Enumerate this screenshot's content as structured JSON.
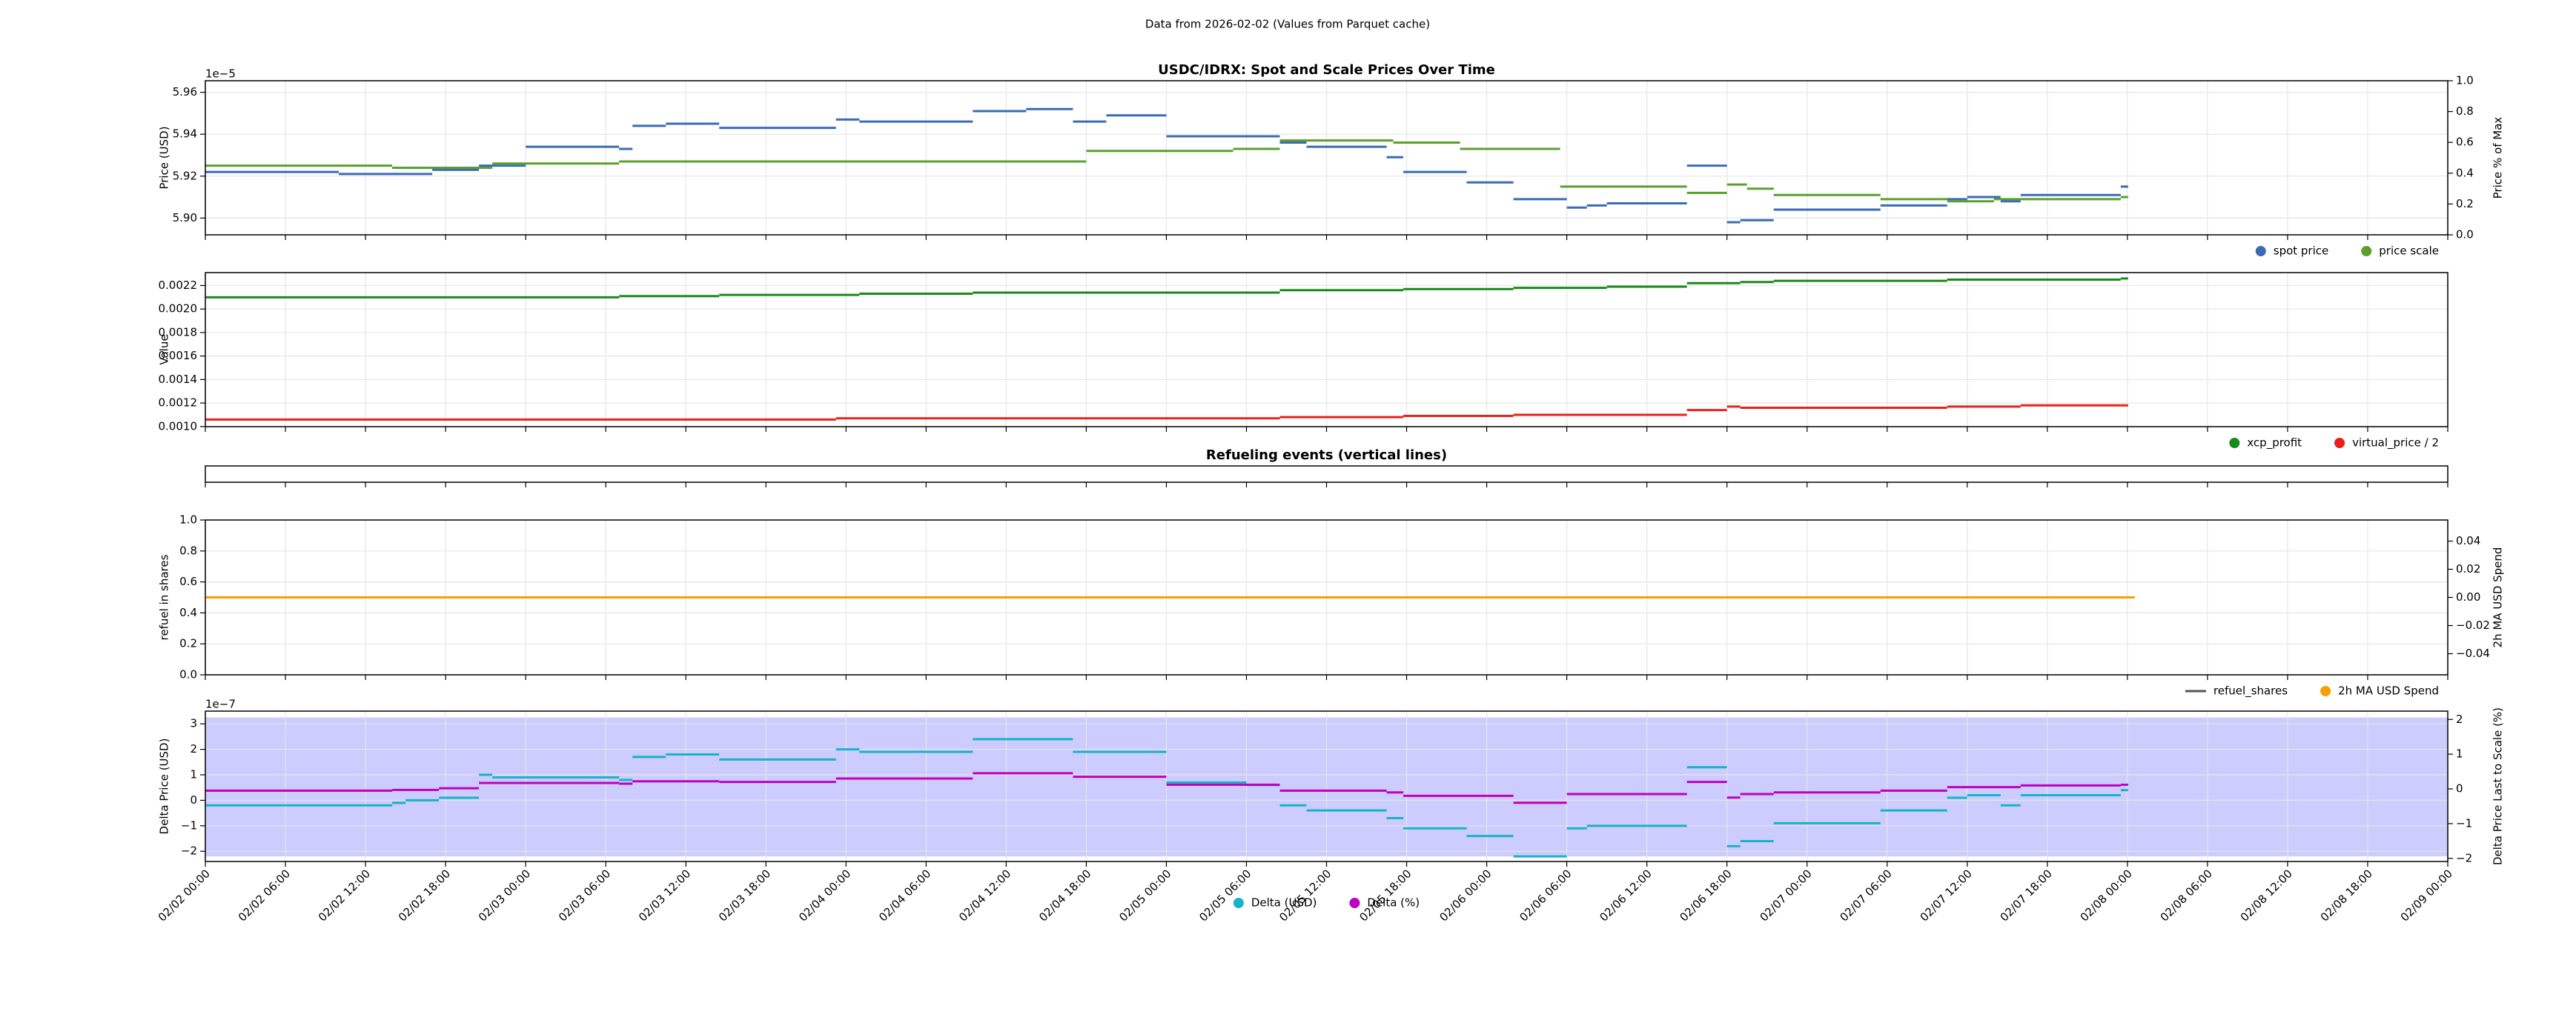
{
  "figure_title": "Data from 2026-02-02 (Values from Parquet cache)",
  "chart_data": [
    {
      "type": "step",
      "title": "USDC/IDRX: Spot and Scale Prices Over Time",
      "ylabel": "Price (USD)",
      "y_offset_label": "1e−5",
      "ylim": [
        5.892,
        5.9655
      ],
      "yticks": [
        {
          "value": 5.9,
          "label": "5.90"
        },
        {
          "value": 5.92,
          "label": "5.92"
        },
        {
          "value": 5.94,
          "label": "5.94"
        },
        {
          "value": 5.96,
          "label": "5.96"
        }
      ],
      "y2label": "Price % of Max",
      "y2lim": [
        0,
        1
      ],
      "y2ticks": [
        {
          "value": 0,
          "label": "0.0"
        },
        {
          "value": 0.2,
          "label": "0.2"
        },
        {
          "value": 0.4,
          "label": "0.4"
        },
        {
          "value": 0.6,
          "label": "0.6"
        },
        {
          "value": 0.8,
          "label": "0.8"
        },
        {
          "value": 1,
          "label": "1.0"
        }
      ],
      "grid": true,
      "legend": "below right",
      "series": [
        {
          "name": "spot price",
          "color": "#3b6bb5",
          "x": [
            "02/02 00:00",
            "02/02 10:00",
            "02/02 17:00",
            "02/02 20:30",
            "02/03 00:00",
            "02/03 07:00",
            "02/03 08:00",
            "02/03 10:30",
            "02/03 14:30",
            "02/03 23:15",
            "02/04 01:00",
            "02/04 09:30",
            "02/04 13:30",
            "02/04 17:00",
            "02/04 19:30",
            "02/05 00:00",
            "02/05 08:30",
            "02/05 10:30",
            "02/05 16:30",
            "02/05 17:45",
            "02/05 22:30",
            "02/06 02:00",
            "02/06 06:00",
            "02/06 07:30",
            "02/06 09:00",
            "02/06 15:00",
            "02/06 18:00",
            "02/06 19:00",
            "02/06 21:30",
            "02/07 05:30",
            "02/07 10:30",
            "02/07 12:00",
            "02/07 14:30",
            "02/07 16:00",
            "02/07 23:30"
          ],
          "values": [
            5.922,
            5.921,
            5.923,
            5.925,
            5.934,
            5.933,
            5.944,
            5.945,
            5.943,
            5.947,
            5.946,
            5.951,
            5.952,
            5.946,
            5.949,
            5.939,
            5.936,
            5.934,
            5.929,
            5.922,
            5.917,
            5.909,
            5.905,
            5.906,
            5.907,
            5.925,
            5.898,
            5.899,
            5.904,
            5.906,
            5.909,
            5.91,
            5.908,
            5.911,
            5.915
          ]
        },
        {
          "name": "price scale",
          "color": "#5aa02c",
          "x": [
            "02/02 00:00",
            "02/02 14:00",
            "02/02 21:30",
            "02/03 07:00",
            "02/04 18:00",
            "02/05 05:00",
            "02/05 08:30",
            "02/05 17:00",
            "02/05 22:00",
            "02/06 05:30",
            "02/06 15:00",
            "02/06 18:00",
            "02/06 19:30",
            "02/06 21:30",
            "02/07 05:30",
            "02/07 10:30",
            "02/07 14:00",
            "02/07 23:30"
          ],
          "values": [
            5.925,
            5.924,
            5.926,
            5.927,
            5.932,
            5.933,
            5.937,
            5.936,
            5.933,
            5.915,
            5.912,
            5.916,
            5.914,
            5.911,
            5.909,
            5.908,
            5.909,
            5.91
          ]
        }
      ]
    },
    {
      "type": "step",
      "ylabel": "Value",
      "ylim": [
        0.000999,
        0.00231
      ],
      "yticks": [
        {
          "value": 0.001,
          "label": "0.0010"
        },
        {
          "value": 0.0012,
          "label": "0.0012"
        },
        {
          "value": 0.0014,
          "label": "0.0014"
        },
        {
          "value": 0.0016,
          "label": "0.0016"
        },
        {
          "value": 0.0018,
          "label": "0.0018"
        },
        {
          "value": 0.002,
          "label": "0.0020"
        },
        {
          "value": 0.0022,
          "label": "0.0022"
        }
      ],
      "grid": true,
      "legend": "below right",
      "series": [
        {
          "name": "xcp_profit",
          "color": "#1a8a1a",
          "x": [
            "02/02 00:00",
            "02/03 07:00",
            "02/03 14:30",
            "02/04 01:00",
            "02/04 09:30",
            "02/05 08:30",
            "02/05 17:45",
            "02/06 02:00",
            "02/06 09:00",
            "02/06 15:00",
            "02/06 19:00",
            "02/06 21:30",
            "02/07 10:30",
            "02/07 23:30"
          ],
          "values": [
            0.0021,
            0.00211,
            0.00212,
            0.00213,
            0.00214,
            0.00216,
            0.00217,
            0.00218,
            0.00219,
            0.00222,
            0.00223,
            0.00224,
            0.00225,
            0.00226
          ]
        },
        {
          "name": "virtual_price / 2",
          "color": "#e8221b",
          "x": [
            "02/02 00:00",
            "02/03 23:15",
            "02/05 08:30",
            "02/05 17:45",
            "02/06 02:00",
            "02/06 15:00",
            "02/06 18:00",
            "02/06 19:00",
            "02/07 10:30",
            "02/07 16:00",
            "02/07 23:30"
          ],
          "values": [
            0.00106,
            0.00107,
            0.00108,
            0.00109,
            0.0011,
            0.00114,
            0.00117,
            0.00116,
            0.00117,
            0.00118,
            0.00118
          ]
        }
      ]
    },
    {
      "type": "events",
      "title": "Refueling events (vertical lines)",
      "grid": false
    },
    {
      "type": "step",
      "ylabel": "refuel in shares",
      "ylim": [
        0,
        1
      ],
      "yticks": [
        {
          "value": 0,
          "label": "0.0"
        },
        {
          "value": 0.2,
          "label": "0.2"
        },
        {
          "value": 0.4,
          "label": "0.4"
        },
        {
          "value": 0.6,
          "label": "0.6"
        },
        {
          "value": 0.8,
          "label": "0.8"
        },
        {
          "value": 1,
          "label": "1.0"
        }
      ],
      "y2label": "2h MA USD Spend",
      "y2lim": [
        -0.055,
        0.055
      ],
      "y2_axis_color": "#f5a000",
      "y2ticks": [
        {
          "value": -0.04,
          "label": "−0.04"
        },
        {
          "value": -0.02,
          "label": "−0.02"
        },
        {
          "value": 0,
          "label": "0.00"
        },
        {
          "value": 0.02,
          "label": "0.02"
        },
        {
          "value": 0.04,
          "label": "0.04"
        }
      ],
      "grid": true,
      "legend": "below right",
      "series": [
        {
          "name": "refuel_shares",
          "color": "#555555",
          "marker": "line"
        },
        {
          "name": "2h MA USD Spend",
          "color": "#f5a000",
          "axis": "y2",
          "x": [
            "02/02 00:00",
            "02/08 00:00"
          ],
          "values": [
            0,
            0
          ]
        }
      ]
    },
    {
      "type": "step",
      "ylabel": "Delta Price (USD)",
      "y_offset_label": "1e−7",
      "y_axis_color": "#17b3c6",
      "ylim": [
        -2.4,
        3.5
      ],
      "yticks": [
        {
          "value": -2,
          "label": "−2"
        },
        {
          "value": -1,
          "label": "−1"
        },
        0,
        1,
        2,
        3
      ],
      "y2label": "Delta Price Last to Scale (%)",
      "y2_axis_color": "#bf00bf",
      "y2lim": [
        -2.09,
        2.24
      ],
      "y2ticks": [
        {
          "value": -2,
          "label": "−2"
        },
        {
          "value": -1,
          "label": "−1"
        },
        0,
        1,
        2
      ],
      "shaded_range": [
        -2.2,
        3.25
      ],
      "shaded_color": "#ccccff",
      "grid": true,
      "legend": "below center",
      "xlim": [
        "02/02 00:00",
        "02/09 00:00"
      ],
      "xticks": [
        "02/02 00:00",
        "02/02 06:00",
        "02/02 12:00",
        "02/02 18:00",
        "02/03 00:00",
        "02/03 06:00",
        "02/03 12:00",
        "02/03 18:00",
        "02/04 00:00",
        "02/04 06:00",
        "02/04 12:00",
        "02/04 18:00",
        "02/05 00:00",
        "02/05 06:00",
        "02/05 12:00",
        "02/05 18:00",
        "02/06 00:00",
        "02/06 06:00",
        "02/06 12:00",
        "02/06 18:00",
        "02/07 00:00",
        "02/07 06:00",
        "02/07 12:00",
        "02/07 18:00",
        "02/08 00:00",
        "02/08 06:00",
        "02/08 12:00",
        "02/08 18:00",
        "02/09 00:00"
      ],
      "series": [
        {
          "name": "Delta (USD)",
          "color": "#17b3c6",
          "x": [
            "02/02 00:00",
            "02/02 14:00",
            "02/02 15:00",
            "02/02 17:30",
            "02/02 20:30",
            "02/02 21:30",
            "02/03 07:00",
            "02/03 08:00",
            "02/03 10:30",
            "02/03 14:30",
            "02/03 23:15",
            "02/04 01:00",
            "02/04 09:30",
            "02/04 17:00",
            "02/05 00:00",
            "02/05 06:00",
            "02/05 08:30",
            "02/05 10:30",
            "02/05 16:30",
            "02/05 17:45",
            "02/05 22:30",
            "02/06 02:00",
            "02/06 06:00",
            "02/06 07:30",
            "02/06 15:00",
            "02/06 18:00",
            "02/06 19:00",
            "02/06 21:30",
            "02/07 05:30",
            "02/07 10:30",
            "02/07 12:00",
            "02/07 14:30",
            "02/07 16:00",
            "02/07 23:30"
          ],
          "values": [
            -0.2,
            -0.1,
            0.0,
            0.1,
            1.0,
            0.9,
            0.8,
            1.7,
            1.8,
            1.6,
            2.0,
            1.9,
            2.4,
            1.9,
            0.7,
            0.6,
            -0.2,
            -0.4,
            -0.7,
            -1.1,
            -1.4,
            -2.2,
            -1.1,
            -1.0,
            1.3,
            -1.8,
            -1.6,
            -0.9,
            -0.4,
            0.1,
            0.2,
            -0.2,
            0.2,
            0.4
          ]
        },
        {
          "name": "Delta (%)",
          "color": "#bf00bf",
          "axis": "y2",
          "x": [
            "02/02 00:00",
            "02/02 14:00",
            "02/02 17:30",
            "02/02 20:30",
            "02/03 07:00",
            "02/03 08:00",
            "02/03 14:30",
            "02/03 23:15",
            "02/04 09:30",
            "02/04 17:00",
            "02/05 00:00",
            "02/05 08:30",
            "02/05 16:30",
            "02/05 17:45",
            "02/06 00:00",
            "02/06 02:00",
            "02/06 06:00",
            "02/06 15:00",
            "02/06 18:00",
            "02/06 19:00",
            "02/06 21:30",
            "02/07 05:30",
            "02/07 10:30",
            "02/07 16:00",
            "02/07 23:30"
          ],
          "values": [
            -0.05,
            -0.03,
            0.02,
            0.17,
            0.15,
            0.22,
            0.2,
            0.3,
            0.45,
            0.35,
            0.12,
            -0.05,
            -0.1,
            -0.2,
            -0.2,
            -0.4,
            -0.15,
            0.2,
            -0.25,
            -0.15,
            -0.1,
            -0.05,
            0.05,
            0.1,
            0.12
          ]
        }
      ]
    }
  ]
}
